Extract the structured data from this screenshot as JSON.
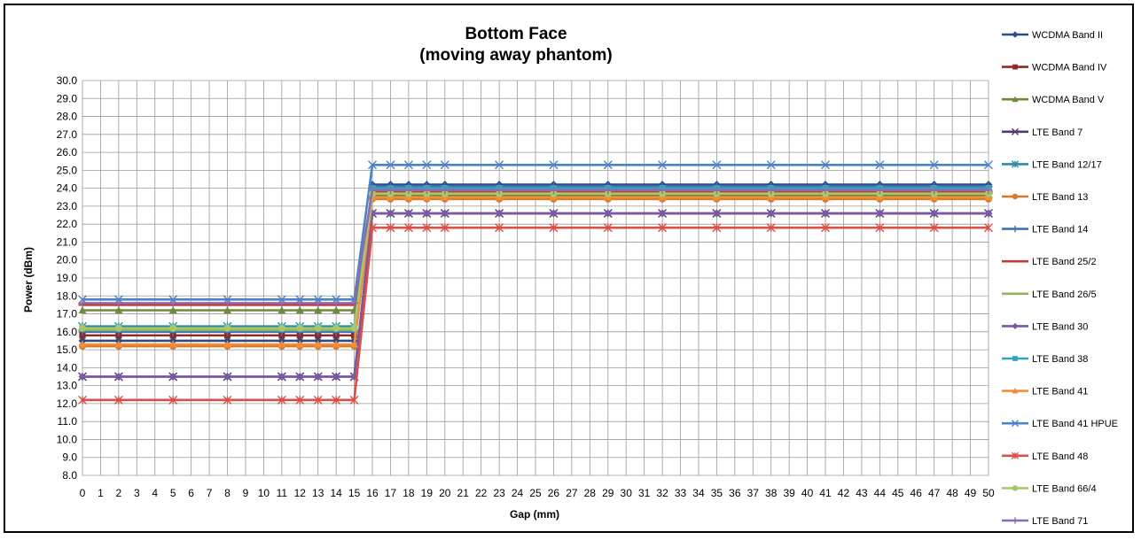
{
  "chart_data": {
    "type": "line",
    "title": "Bottom Face",
    "subtitle": "(moving away phantom)",
    "xlabel": "Gap (mm)",
    "ylabel": "Power (dBm)",
    "ylim": [
      8.0,
      30.0
    ],
    "ytick_step": 1.0,
    "categories": [
      "0",
      "1",
      "2",
      "3",
      "4",
      "5",
      "6",
      "7",
      "8",
      "9",
      "10",
      "11",
      "12",
      "13",
      "14",
      "15",
      "16",
      "17",
      "18",
      "19",
      "20",
      "21",
      "22",
      "23",
      "24",
      "25",
      "26",
      "27",
      "28",
      "29",
      "30",
      "31",
      "32",
      "33",
      "34",
      "35",
      "36",
      "37",
      "38",
      "39",
      "40",
      "41",
      "42",
      "43",
      "44",
      "45",
      "46",
      "47",
      "48",
      "49",
      "50"
    ],
    "marker_x": [
      0,
      2,
      5,
      8,
      11,
      12,
      13,
      14,
      15,
      16,
      17,
      18,
      19,
      20,
      23,
      26,
      29,
      32,
      35,
      38,
      41,
      44,
      47,
      50
    ],
    "step_x": [
      15,
      16
    ],
    "grid": true,
    "legend_position": "right",
    "series": [
      {
        "name": "WCDMA Band II",
        "color": "#2E4B87",
        "marker": "diamond",
        "low": 15.5,
        "high": 24.2
      },
      {
        "name": "WCDMA Band IV",
        "color": "#8E2A28",
        "marker": "square",
        "low": 15.8,
        "high": 24.0
      },
      {
        "name": "WCDMA Band V",
        "color": "#71893A",
        "marker": "triangle",
        "low": 17.2,
        "high": 23.6
      },
      {
        "name": "LTE Band 7",
        "color": "#4F3A73",
        "marker": "x",
        "low": 13.5,
        "high": 22.6
      },
      {
        "name": "LTE Band 12/17",
        "color": "#2B8DA3",
        "marker": "star",
        "low": 16.3,
        "high": 23.9
      },
      {
        "name": "LTE Band 13",
        "color": "#D9782B",
        "marker": "circle",
        "low": 15.2,
        "high": 23.4
      },
      {
        "name": "LTE Band 14",
        "color": "#3E75B8",
        "marker": "plus",
        "low": 16.0,
        "high": 24.1
      },
      {
        "name": "LTE Band 25/2",
        "color": "#C23B36",
        "marker": "dash",
        "low": 17.5,
        "high": 23.8
      },
      {
        "name": "LTE Band 26/5",
        "color": "#93B55A",
        "marker": "dash",
        "low": 16.1,
        "high": 23.5
      },
      {
        "name": "LTE Band 30",
        "color": "#7A58A2",
        "marker": "diamond",
        "low": 13.5,
        "high": 22.6
      },
      {
        "name": "LTE Band 38",
        "color": "#36A3BD",
        "marker": "square",
        "low": 16.2,
        "high": 24.0
      },
      {
        "name": "LTE Band 41",
        "color": "#F08F3A",
        "marker": "triangle",
        "low": 15.3,
        "high": 23.5
      },
      {
        "name": "LTE Band 41 HPUE",
        "color": "#4A84C6",
        "marker": "x",
        "low": 17.8,
        "high": 25.3
      },
      {
        "name": "LTE Band 48",
        "color": "#D9504A",
        "marker": "star",
        "low": 12.2,
        "high": 21.8
      },
      {
        "name": "LTE Band 66/4",
        "color": "#A7C86A",
        "marker": "circle",
        "low": 16.2,
        "high": 23.7
      },
      {
        "name": "LTE Band 71",
        "color": "#8C6BB5",
        "marker": "plus",
        "low": 17.6,
        "high": 23.9
      }
    ]
  }
}
